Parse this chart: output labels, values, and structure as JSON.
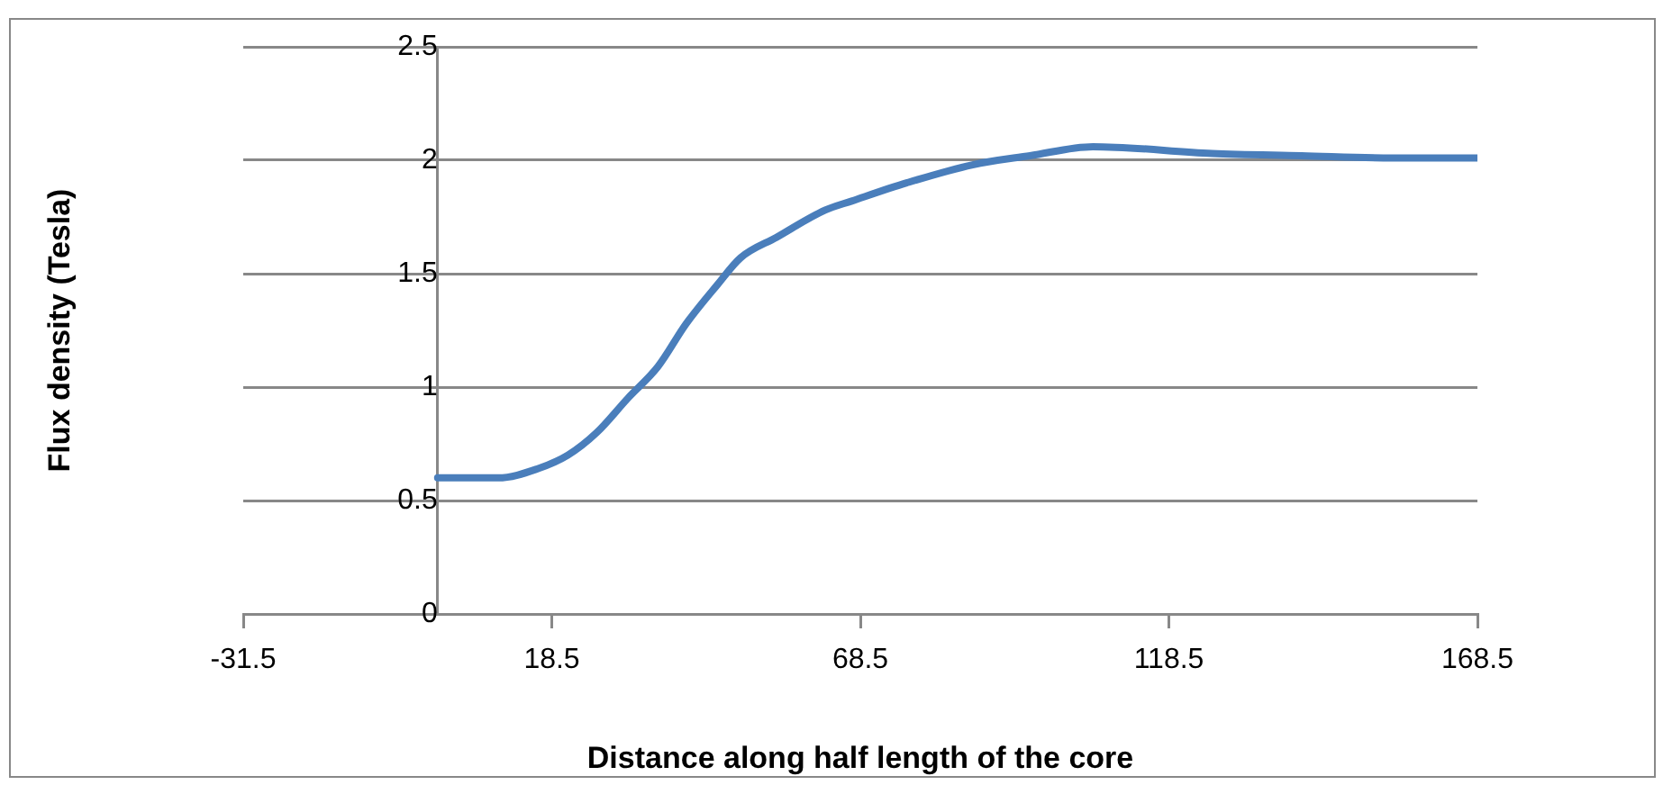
{
  "chart_data": {
    "type": "line",
    "xlabel": "Distance along half length of the core",
    "ylabel": "Flux density (Tesla)",
    "x": [
      0,
      2.9,
      9.8,
      16.2,
      21.1,
      25.8,
      30.8,
      35.7,
      40.3,
      45.3,
      49.1,
      54.9,
      62.8,
      67.1,
      76,
      86.7,
      96,
      106.2,
      125.5,
      140,
      154.7,
      168.5
    ],
    "series": [
      {
        "color": "#4a7ebb",
        "values": [
          0.6,
          0.6,
          0.6,
          0.64,
          0.7,
          0.8,
          0.95,
          1.09,
          1.28,
          1.45,
          1.57,
          1.66,
          1.78,
          1.82,
          1.9,
          1.98,
          2.02,
          2.06,
          2.03,
          2.02,
          2.01,
          2.01
        ]
      }
    ],
    "xlim": [
      -31.5,
      168.5
    ],
    "xticks": [
      -31.5,
      18.5,
      68.5,
      118.5,
      168.5
    ],
    "ylim": [
      0,
      2.5
    ],
    "yticks": [
      0,
      0.5,
      1,
      1.5,
      2,
      2.5
    ],
    "grid": "y",
    "legend": false,
    "marker": "none",
    "line_style": "solid"
  }
}
